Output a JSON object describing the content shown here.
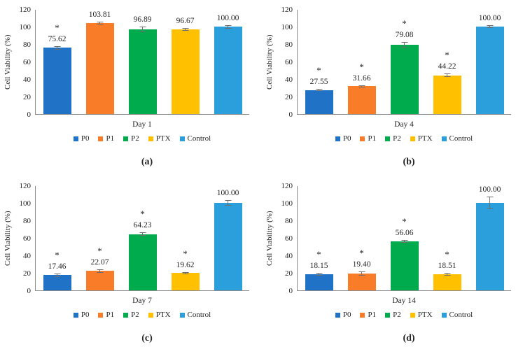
{
  "figure": {
    "ylabel": "Cell Viability (%)",
    "ylim": [
      0,
      120
    ],
    "yticks": [
      0,
      20,
      40,
      60,
      80,
      100,
      120
    ],
    "grid": false,
    "legend_position": "bottom",
    "series_colors": {
      "P0": "#1F72C6",
      "P1": "#F97C28",
      "P2": "#00AB4E",
      "PTX": "#FFC000",
      "Control": "#2B9FDC"
    },
    "error_bar_color": "#6e6e6e",
    "axis_color": "#8c8c8c",
    "legend": [
      {
        "label": "P0",
        "color": "#1F72C6"
      },
      {
        "label": "P1",
        "color": "#F97C28"
      },
      {
        "label": "P2",
        "color": "#00AB4E"
      },
      {
        "label": "PTX",
        "color": "#FFC000"
      },
      {
        "label": "Control",
        "color": "#2B9FDC"
      }
    ]
  },
  "chart_data": [
    {
      "type": "bar",
      "panel_label": "(a)",
      "xlabel": "Day 1",
      "ylabel": "Cell Viability (%)",
      "ylim": [
        0,
        120
      ],
      "categories": [
        "P0",
        "P1",
        "P2",
        "PTX",
        "Control"
      ],
      "values": [
        75.62,
        103.81,
        96.89,
        96.67,
        100.0
      ],
      "labels": [
        "75.62",
        "103.81",
        "96.89",
        "96.67",
        "100.00"
      ],
      "significant": [
        true,
        false,
        false,
        false,
        false
      ],
      "errors": [
        2,
        1.5,
        3.5,
        1.5,
        2
      ]
    },
    {
      "type": "bar",
      "panel_label": "(b)",
      "xlabel": "Day 4",
      "ylabel": "Cell Viability (%)",
      "ylim": [
        0,
        120
      ],
      "categories": [
        "P0",
        "P1",
        "P2",
        "PTX",
        "Control"
      ],
      "values": [
        27.55,
        31.66,
        79.08,
        44.22,
        100.0
      ],
      "labels": [
        "27.55",
        "31.66",
        "79.08",
        "44.22",
        "100.00"
      ],
      "significant": [
        true,
        true,
        true,
        true,
        false
      ],
      "errors": [
        1.5,
        1.5,
        3,
        2,
        1.5
      ]
    },
    {
      "type": "bar",
      "panel_label": "(c)",
      "xlabel": "Day 7",
      "ylabel": "Cell Viability (%)",
      "ylim": [
        0,
        120
      ],
      "categories": [
        "P0",
        "P1",
        "P2",
        "PTX",
        "Control"
      ],
      "values": [
        17.46,
        22.07,
        64.23,
        19.62,
        100.0
      ],
      "labels": [
        "17.46",
        "22.07",
        "64.23",
        "19.62",
        "100.00"
      ],
      "significant": [
        true,
        true,
        true,
        true,
        false
      ],
      "errors": [
        2,
        2,
        2,
        1.5,
        3.5
      ]
    },
    {
      "type": "bar",
      "panel_label": "(d)",
      "xlabel": "Day 14",
      "ylabel": "Cell Viability (%)",
      "ylim": [
        0,
        120
      ],
      "categories": [
        "P0",
        "P1",
        "P2",
        "PTX",
        "Control"
      ],
      "values": [
        18.15,
        19.4,
        56.06,
        18.51,
        100.0
      ],
      "labels": [
        "18.15",
        "19.40",
        "56.06",
        "18.51",
        "100.00"
      ],
      "significant": [
        true,
        true,
        true,
        true,
        false
      ],
      "errors": [
        1.5,
        2.5,
        1.5,
        1.5,
        7
      ]
    }
  ]
}
